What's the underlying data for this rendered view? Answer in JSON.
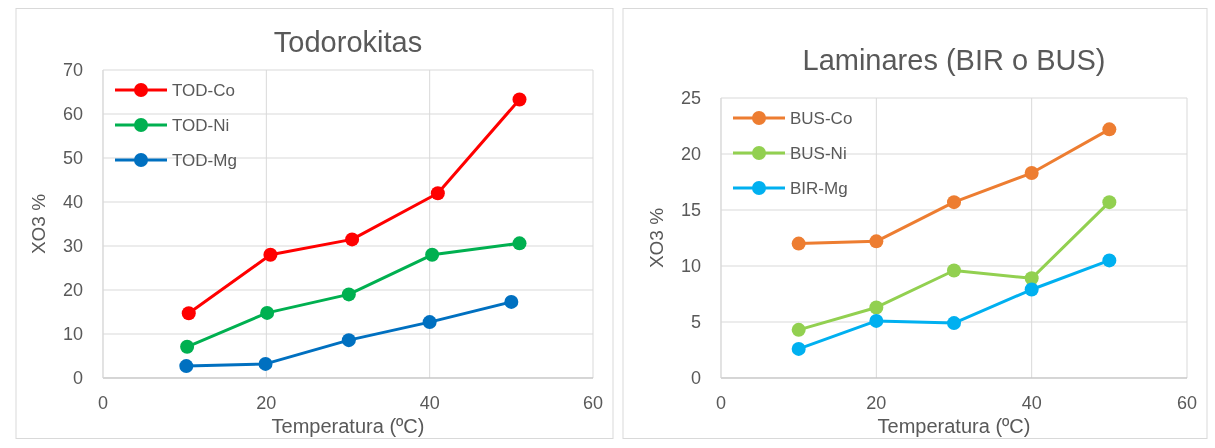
{
  "chart_data": [
    {
      "type": "line",
      "title": "Todorokitas",
      "xlabel": "Temperatura (ºC)",
      "ylabel": "XO3 %",
      "xlim": [
        0,
        60
      ],
      "xticks": [
        0,
        20,
        40,
        60
      ],
      "ylim": [
        0,
        70
      ],
      "yticks": [
        0,
        10,
        20,
        30,
        40,
        50,
        60,
        70
      ],
      "grid": true,
      "legend": "top left",
      "marker": "circle",
      "series": [
        {
          "name": "TOD-Co",
          "color": "#ff0000",
          "x": [
            10.5,
            20.5,
            30.5,
            41,
            51
          ],
          "values": [
            14.7,
            28,
            31.5,
            42,
            63.3
          ]
        },
        {
          "name": "TOD-Ni",
          "color": "#00b050",
          "x": [
            10.3,
            20.1,
            30.1,
            40.3,
            51
          ],
          "values": [
            7.1,
            14.8,
            19,
            28,
            30.6
          ]
        },
        {
          "name": "TOD-Mg",
          "color": "#0070c0",
          "x": [
            10.2,
            19.9,
            30.1,
            40,
            50
          ],
          "values": [
            2.7,
            3.2,
            8.6,
            12.7,
            17.3
          ]
        }
      ]
    },
    {
      "type": "line",
      "title": "Laminares (BIR o BUS)",
      "xlabel": "Temperatura (ºC)",
      "ylabel": "XO3 %",
      "xlim": [
        0,
        60
      ],
      "xticks": [
        0,
        20,
        40,
        60
      ],
      "ylim": [
        0,
        25
      ],
      "yticks": [
        0,
        5,
        10,
        15,
        20,
        25
      ],
      "grid": true,
      "legend": "top left",
      "marker": "circle",
      "series": [
        {
          "name": "BUS-Co",
          "color": "#ed7d31",
          "x": [
            10,
            20,
            30,
            40,
            50
          ],
          "values": [
            12,
            12.2,
            15.7,
            18.3,
            22.2
          ]
        },
        {
          "name": "BUS-Ni",
          "color": "#92d050",
          "x": [
            10,
            20,
            30,
            40,
            50
          ],
          "values": [
            4.3,
            6.3,
            9.6,
            8.9,
            15.7
          ]
        },
        {
          "name": "BIR-Mg",
          "color": "#00b0f0",
          "x": [
            10,
            20,
            30,
            40,
            50
          ],
          "values": [
            2.6,
            5.1,
            4.9,
            7.9,
            10.5
          ]
        }
      ]
    }
  ]
}
